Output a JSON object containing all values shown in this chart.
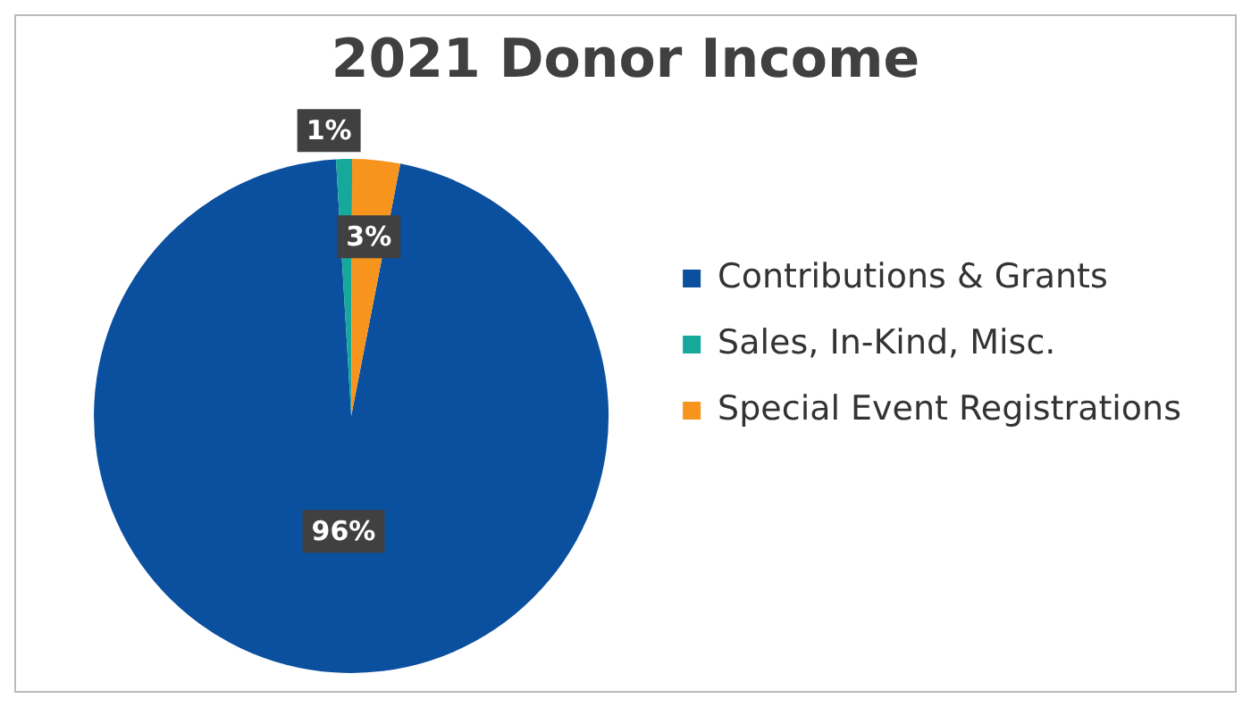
{
  "chart_data": {
    "type": "pie",
    "title": "2021 Donor Income",
    "categories": [
      "Contributions & Grants",
      "Sales, In-Kind, Misc.",
      "Special Event Registrations"
    ],
    "values": [
      96,
      1,
      3
    ],
    "colors": [
      "#0b4f9f",
      "#16a89a",
      "#f7941d"
    ],
    "value_labels": [
      "96%",
      "1%",
      "3%"
    ],
    "legend": "right"
  }
}
